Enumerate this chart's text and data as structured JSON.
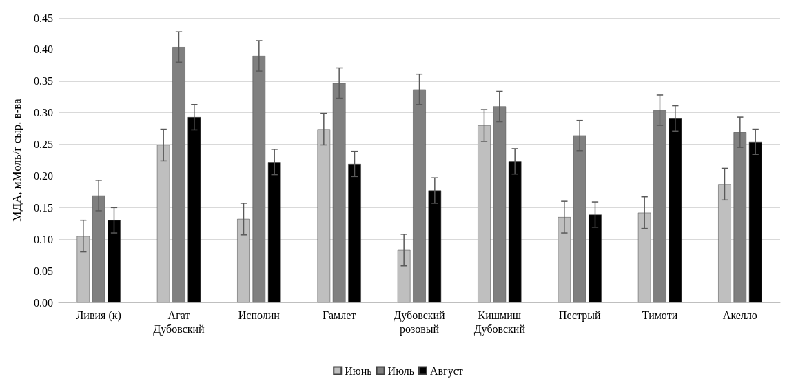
{
  "chart_data": {
    "type": "bar",
    "ylabel": "МДА, мМоль/г сыр. в-ва",
    "categories": [
      "Ливия (к)",
      "Агат Дубовский",
      "Исполин",
      "Гамлет",
      "Дубовский розовый",
      "Кишмиш Дубовский",
      "Пестрый",
      "Тимоти",
      "Акелло"
    ],
    "series": [
      {
        "name": "Июнь",
        "color": "#bfbfbf",
        "values": [
          0.105,
          0.249,
          0.132,
          0.274,
          0.083,
          0.28,
          0.135,
          0.142,
          0.187
        ],
        "errors": [
          0.025,
          0.025,
          0.025,
          0.025,
          0.025,
          0.025,
          0.025,
          0.025,
          0.025
        ]
      },
      {
        "name": "Июль",
        "color": "#808080",
        "values": [
          0.169,
          0.404,
          0.39,
          0.347,
          0.337,
          0.31,
          0.264,
          0.304,
          0.269
        ],
        "errors": [
          0.024,
          0.024,
          0.024,
          0.024,
          0.024,
          0.024,
          0.024,
          0.024,
          0.024
        ]
      },
      {
        "name": "Август",
        "color": "#000000",
        "values": [
          0.13,
          0.293,
          0.222,
          0.219,
          0.177,
          0.223,
          0.139,
          0.291,
          0.254
        ],
        "errors": [
          0.02,
          0.02,
          0.02,
          0.02,
          0.02,
          0.02,
          0.02,
          0.02,
          0.02
        ]
      }
    ],
    "ylim": [
      0,
      0.45
    ],
    "yticks": [
      {
        "value": 0,
        "label": "0.00"
      },
      0.05,
      {
        "value": 0.1,
        "label": "0.10"
      },
      0.15,
      {
        "value": 0.2,
        "label": "0.20"
      },
      0.25,
      {
        "value": 0.3,
        "label": "0.30"
      },
      0.35,
      {
        "value": 0.4,
        "label": "0.40"
      },
      0.45
    ],
    "grid": "y",
    "legend": "bottom"
  }
}
